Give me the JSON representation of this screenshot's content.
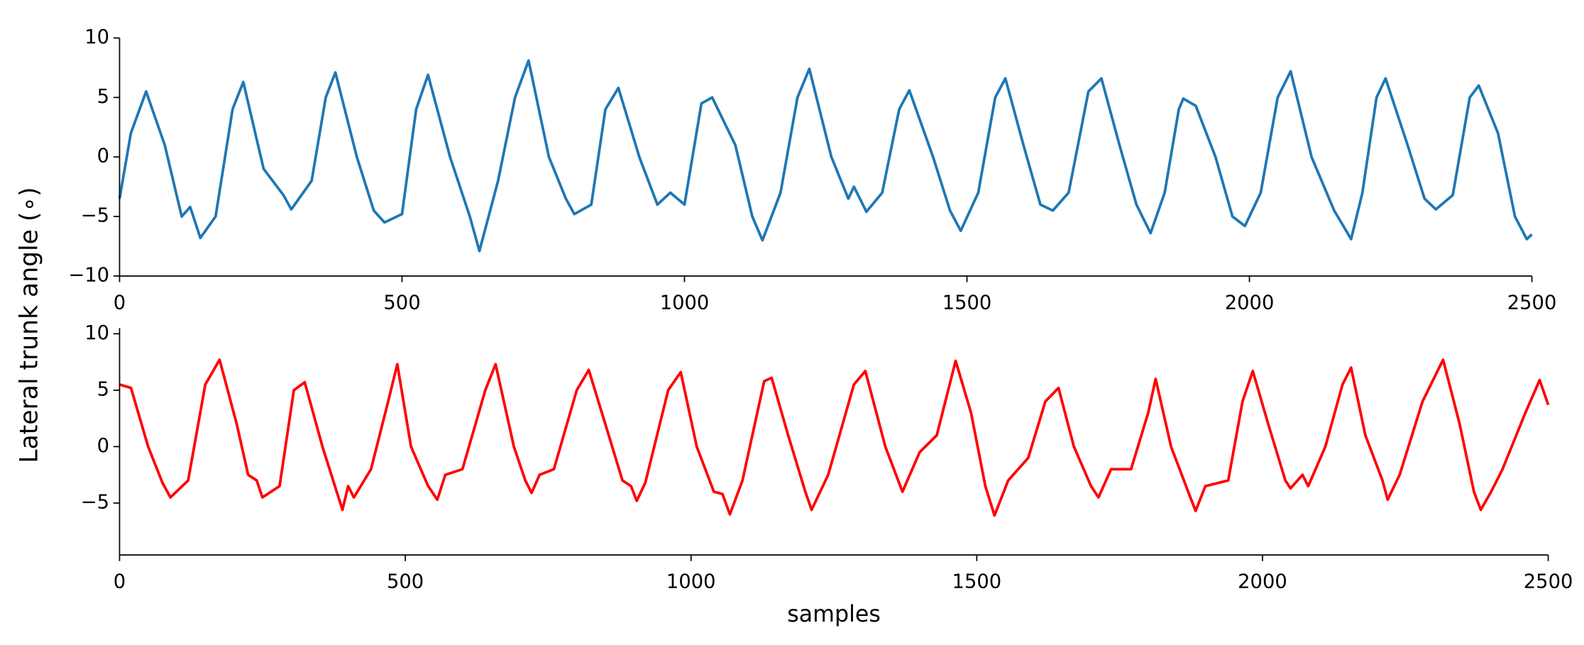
{
  "chart_data": [
    {
      "type": "line",
      "ylabel": "Lateral trunk angle  (∘)",
      "x": [
        0,
        20,
        47,
        80,
        110,
        125,
        143,
        170,
        200,
        219,
        255,
        290,
        304,
        340,
        365,
        382,
        420,
        450,
        469,
        500,
        525,
        546,
        585,
        620,
        637,
        670,
        700,
        724,
        760,
        790,
        805,
        835,
        860,
        883,
        920,
        952,
        975,
        1000,
        1030,
        1049,
        1090,
        1120,
        1138,
        1170,
        1200,
        1221,
        1260,
        1290,
        1300,
        1322,
        1350,
        1380,
        1398,
        1440,
        1470,
        1489,
        1520,
        1550,
        1568,
        1600,
        1630,
        1652,
        1680,
        1715,
        1738,
        1770,
        1800,
        1825,
        1850,
        1875,
        1883,
        1905,
        1940,
        1970,
        1992,
        2020,
        2050,
        2073,
        2110,
        2150,
        2180,
        2200,
        2225,
        2241,
        2280,
        2310,
        2330,
        2360,
        2390,
        2406,
        2440,
        2470,
        2491,
        2500
      ],
      "series": [
        {
          "color": "#1f77b4",
          "values": [
            -3.5,
            2,
            5.5,
            1,
            -5,
            -4.2,
            -6.8,
            -5,
            4,
            6.3,
            -1,
            -3.2,
            -4.4,
            -2,
            5,
            7.1,
            0,
            -4.5,
            -5.5,
            -4.8,
            4,
            6.9,
            0,
            -5,
            -7.9,
            -2,
            5,
            8.1,
            0,
            -3.5,
            -4.8,
            -4,
            4,
            5.8,
            0,
            -4,
            -3,
            -4,
            4.5,
            5,
            1,
            -5,
            -7,
            -3,
            5,
            7.4,
            0,
            -3.5,
            -2.5,
            -4.6,
            -3,
            4,
            5.6,
            0,
            -4.5,
            -6.2,
            -3,
            5,
            6.6,
            1,
            -4,
            -4.5,
            -3,
            5.5,
            6.6,
            1,
            -4,
            -6.4,
            -3,
            4,
            4.9,
            4.3,
            0,
            -5,
            -5.8,
            -3,
            5,
            7.2,
            0,
            -4.5,
            -6.9,
            -3,
            5,
            6.6,
            1,
            -3.5,
            -4.4,
            -3.2,
            5,
            6,
            2,
            -5,
            -6.9,
            -6.5
          ]
        }
      ],
      "xlim": [
        0,
        2500
      ],
      "xticks": [
        0,
        500,
        1000,
        1500,
        2000,
        2500
      ],
      "ylim": [
        -10,
        10
      ],
      "yticks": [
        {
          "value": -10,
          "label": "−10"
        },
        {
          "value": -5,
          "label": "−5"
        },
        0,
        5,
        10
      ]
    },
    {
      "type": "line",
      "xlabel": "samples",
      "x": [
        0,
        20,
        50,
        75,
        89,
        120,
        150,
        175,
        205,
        225,
        240,
        250,
        280,
        305,
        324,
        355,
        380,
        390,
        400,
        410,
        440,
        470,
        486,
        510,
        540,
        556,
        570,
        600,
        640,
        658,
        690,
        710,
        721,
        735,
        760,
        800,
        821,
        850,
        880,
        895,
        905,
        920,
        960,
        982,
        1010,
        1040,
        1055,
        1068,
        1090,
        1128,
        1141,
        1170,
        1200,
        1211,
        1240,
        1285,
        1305,
        1340,
        1370,
        1400,
        1430,
        1463,
        1490,
        1515,
        1531,
        1555,
        1590,
        1620,
        1643,
        1670,
        1700,
        1713,
        1735,
        1770,
        1800,
        1813,
        1840,
        1870,
        1883,
        1900,
        1940,
        1965,
        1983,
        2010,
        2040,
        2049,
        2070,
        2080,
        2110,
        2140,
        2155,
        2180,
        2210,
        2219,
        2240,
        2280,
        2316,
        2345,
        2370,
        2382,
        2400,
        2420,
        2460,
        2485,
        2500
      ],
      "series": [
        {
          "color": "#ff0000",
          "values": [
            5.5,
            5.2,
            0,
            -3.2,
            -4.5,
            -3,
            5.5,
            7.7,
            2,
            -2.5,
            -3,
            -4.5,
            -3.5,
            5,
            5.7,
            0,
            -4,
            -5.6,
            -3.5,
            -4.5,
            -2,
            4,
            7.3,
            0,
            -3.5,
            -4.7,
            -2.5,
            -2,
            5,
            7.3,
            0,
            -3,
            -4.1,
            -2.5,
            -2,
            5,
            6.8,
            2,
            -3,
            -3.5,
            -4.8,
            -3.2,
            5,
            6.6,
            0,
            -4,
            -4.2,
            -6,
            -3,
            5.8,
            6.1,
            1,
            -4,
            -5.6,
            -2.5,
            5.5,
            6.7,
            0,
            -4,
            -0.5,
            1,
            7.6,
            3,
            -3.5,
            -6.1,
            -3,
            -1,
            4,
            5.2,
            0,
            -3.5,
            -4.5,
            -2,
            -2,
            3,
            6,
            0,
            -4,
            -5.7,
            -3.5,
            -3,
            4,
            6.7,
            2,
            -3,
            -3.7,
            -2.5,
            -3.5,
            0,
            5.5,
            7,
            1,
            -3,
            -4.7,
            -2.5,
            4,
            7.7,
            2,
            -4,
            -5.6,
            -4,
            -2,
            3,
            5.9,
            3.7
          ]
        }
      ],
      "xlim": [
        0,
        2500
      ],
      "xticks": [
        0,
        500,
        1000,
        1500,
        2000,
        2500
      ],
      "ylim": [
        -9.6,
        10.5
      ],
      "yticks": [
        {
          "value": -5,
          "label": "−5"
        },
        0,
        5,
        10
      ]
    }
  ]
}
